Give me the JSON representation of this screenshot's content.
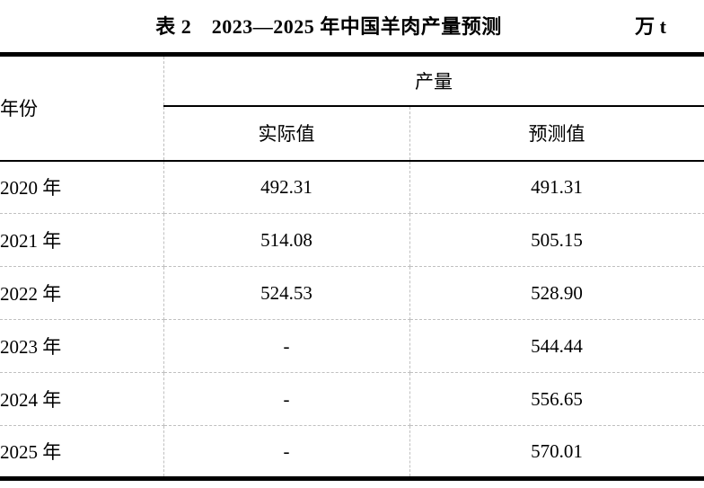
{
  "title": {
    "text": "表 2　2023—2025 年中国羊肉产量预测",
    "unit": "万 t"
  },
  "table": {
    "year_header": "年份",
    "group_header": "产量",
    "sub_headers": {
      "actual": "实际值",
      "predicted": "预测值"
    },
    "rows": [
      {
        "year": "2020 年",
        "actual": "492.31",
        "predicted": "491.31"
      },
      {
        "year": "2021 年",
        "actual": "514.08",
        "predicted": "505.15"
      },
      {
        "year": "2022 年",
        "actual": "524.53",
        "predicted": "528.90"
      },
      {
        "year": "2023 年",
        "actual": "-",
        "predicted": "544.44"
      },
      {
        "year": "2024 年",
        "actual": "-",
        "predicted": "556.65"
      },
      {
        "year": "2025 年",
        "actual": "-",
        "predicted": "570.01"
      }
    ]
  },
  "colors": {
    "text": "#000000",
    "heavy_rule": "#000000",
    "dashed_grid": "#c0c0c0",
    "background": "#ffffff"
  },
  "chart_data": {
    "type": "table",
    "title": "表 2 2023—2025 年中国羊肉产量预测",
    "unit": "万 t",
    "columns": [
      "年份",
      "产量 实际值",
      "产量 预测值"
    ],
    "rows": [
      [
        "2020 年",
        "492.31",
        "491.31"
      ],
      [
        "2021 年",
        "514.08",
        "505.15"
      ],
      [
        "2022 年",
        "524.53",
        "528.90"
      ],
      [
        "2023 年",
        "-",
        "544.44"
      ],
      [
        "2024 年",
        "-",
        "556.65"
      ],
      [
        "2025 年",
        "-",
        "570.01"
      ]
    ]
  }
}
